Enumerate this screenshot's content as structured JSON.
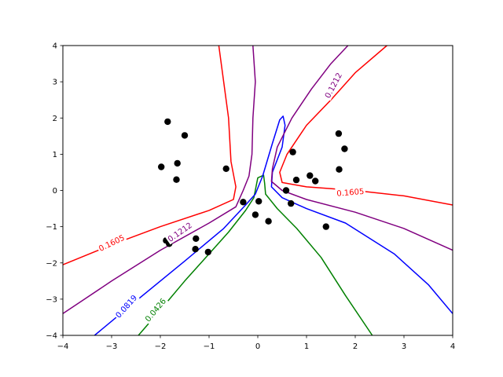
{
  "chart_data": {
    "type": "contour",
    "title": "",
    "xlabel": "",
    "ylabel": "",
    "xlim": [
      -4,
      4
    ],
    "ylim": [
      -4,
      4
    ],
    "xticks": [
      -4,
      -3,
      -2,
      -1,
      0,
      1,
      2,
      3,
      4
    ],
    "yticks": [
      -4,
      -3,
      -2,
      -1,
      0,
      1,
      2,
      3,
      4
    ],
    "grid": false,
    "points": [
      {
        "x": -1.85,
        "y": 1.9
      },
      {
        "x": -1.5,
        "y": 1.52
      },
      {
        "x": -1.65,
        "y": 0.75
      },
      {
        "x": -1.98,
        "y": 0.65
      },
      {
        "x": -1.67,
        "y": 0.3
      },
      {
        "x": -0.65,
        "y": 0.6
      },
      {
        "x": -1.88,
        "y": -1.38
      },
      {
        "x": -1.82,
        "y": -1.47
      },
      {
        "x": -1.27,
        "y": -1.33
      },
      {
        "x": -1.28,
        "y": -1.62
      },
      {
        "x": -1.02,
        "y": -1.7
      },
      {
        "x": -0.3,
        "y": -0.32
      },
      {
        "x": 0.02,
        "y": -0.3
      },
      {
        "x": -0.05,
        "y": -0.67
      },
      {
        "x": 0.22,
        "y": -0.85
      },
      {
        "x": 0.58,
        "y": 0.0
      },
      {
        "x": 0.72,
        "y": 1.06
      },
      {
        "x": 0.79,
        "y": 0.29
      },
      {
        "x": 0.68,
        "y": -0.36
      },
      {
        "x": 1.07,
        "y": 0.41
      },
      {
        "x": 1.18,
        "y": 0.26
      },
      {
        "x": 1.66,
        "y": 1.57
      },
      {
        "x": 1.78,
        "y": 1.15
      },
      {
        "x": 1.67,
        "y": 0.58
      },
      {
        "x": 1.4,
        "y": -1.0
      }
    ],
    "contours": [
      {
        "level": "0.0426",
        "color": "#008000",
        "paths": [
          [
            [
              -2.45,
              -4.0
            ],
            [
              -2.0,
              -3.3
            ],
            [
              -1.5,
              -2.5
            ],
            [
              -1.0,
              -1.75
            ],
            [
              -0.6,
              -1.15
            ],
            [
              -0.25,
              -0.55
            ],
            [
              -0.08,
              -0.2
            ],
            [
              0.0,
              0.35
            ],
            [
              0.12,
              0.42
            ],
            [
              0.14,
              0.2
            ],
            [
              0.16,
              -0.1
            ],
            [
              0.4,
              -0.5
            ],
            [
              0.8,
              -1.05
            ],
            [
              1.3,
              -1.85
            ],
            [
              1.8,
              -2.9
            ],
            [
              2.35,
              -4.0
            ]
          ]
        ],
        "labels": [
          {
            "text": "0.0426",
            "x": -2.1,
            "y": -3.3,
            "angle": -50
          }
        ]
      },
      {
        "level": "0.0819",
        "color": "#0000ff",
        "paths": [
          [
            [
              -3.35,
              -4.0
            ],
            [
              -2.5,
              -3.05
            ],
            [
              -1.5,
              -1.95
            ],
            [
              -0.7,
              -1.05
            ],
            [
              -0.25,
              -0.4
            ],
            [
              -0.05,
              -0.1
            ],
            [
              0.1,
              0.4
            ],
            [
              0.3,
              1.3
            ],
            [
              0.45,
              1.95
            ],
            [
              0.52,
              2.05
            ],
            [
              0.56,
              1.8
            ],
            [
              0.5,
              1.2
            ],
            [
              0.3,
              0.5
            ],
            [
              0.28,
              0.1
            ],
            [
              0.5,
              -0.2
            ],
            [
              1.0,
              -0.5
            ],
            [
              1.8,
              -0.9
            ],
            [
              2.8,
              -1.75
            ],
            [
              3.5,
              -2.6
            ],
            [
              4.0,
              -3.4
            ]
          ]
        ],
        "labels": [
          {
            "text": "0.0819",
            "x": -2.7,
            "y": -3.2,
            "angle": -48
          }
        ]
      },
      {
        "level": "0.1212",
        "color": "#800080",
        "paths": [
          [
            [
              -4.0,
              -3.4
            ],
            [
              -3.0,
              -2.5
            ],
            [
              -2.0,
              -1.65
            ],
            [
              -1.0,
              -0.9
            ],
            [
              -0.45,
              -0.45
            ],
            [
              -0.3,
              0.0
            ],
            [
              -0.18,
              0.4
            ],
            [
              -0.12,
              1.0
            ],
            [
              -0.1,
              2.0
            ],
            [
              -0.05,
              3.0
            ],
            [
              -0.1,
              4.0
            ]
          ],
          [
            [
              1.85,
              4.0
            ],
            [
              1.5,
              3.5
            ],
            [
              1.1,
              2.8
            ],
            [
              0.7,
              2.0
            ],
            [
              0.4,
              1.2
            ],
            [
              0.3,
              0.6
            ],
            [
              0.28,
              0.25
            ],
            [
              0.5,
              0.0
            ],
            [
              1.0,
              -0.25
            ],
            [
              2.0,
              -0.6
            ],
            [
              3.0,
              -1.05
            ],
            [
              4.0,
              -1.65
            ]
          ]
        ],
        "labels": [
          {
            "text": "0.1212",
            "x": 1.55,
            "y": 2.9,
            "angle": -62
          },
          {
            "text": "0.1212",
            "x": -1.6,
            "y": -1.15,
            "angle": -35
          }
        ]
      },
      {
        "level": "0.1605",
        "color": "#ff0000",
        "paths": [
          [
            [
              -4.0,
              -2.05
            ],
            [
              -3.0,
              -1.5
            ],
            [
              -2.0,
              -1.0
            ],
            [
              -1.0,
              -0.55
            ],
            [
              -0.5,
              -0.25
            ],
            [
              -0.45,
              0.1
            ],
            [
              -0.55,
              0.8
            ],
            [
              -0.6,
              2.0
            ],
            [
              -0.7,
              3.0
            ],
            [
              -0.8,
              4.0
            ]
          ],
          [
            [
              2.65,
              4.0
            ],
            [
              2.0,
              3.25
            ],
            [
              1.5,
              2.5
            ],
            [
              1.0,
              1.8
            ],
            [
              0.6,
              1.0
            ],
            [
              0.45,
              0.5
            ],
            [
              0.5,
              0.22
            ],
            [
              1.0,
              0.1
            ],
            [
              2.0,
              0.0
            ],
            [
              3.0,
              -0.15
            ],
            [
              4.0,
              -0.4
            ]
          ]
        ],
        "labels": [
          {
            "text": "0.1605",
            "x": -3.0,
            "y": -1.45,
            "angle": -26
          },
          {
            "text": "0.1605",
            "x": 1.9,
            "y": -0.05,
            "angle": -5
          }
        ]
      }
    ]
  }
}
